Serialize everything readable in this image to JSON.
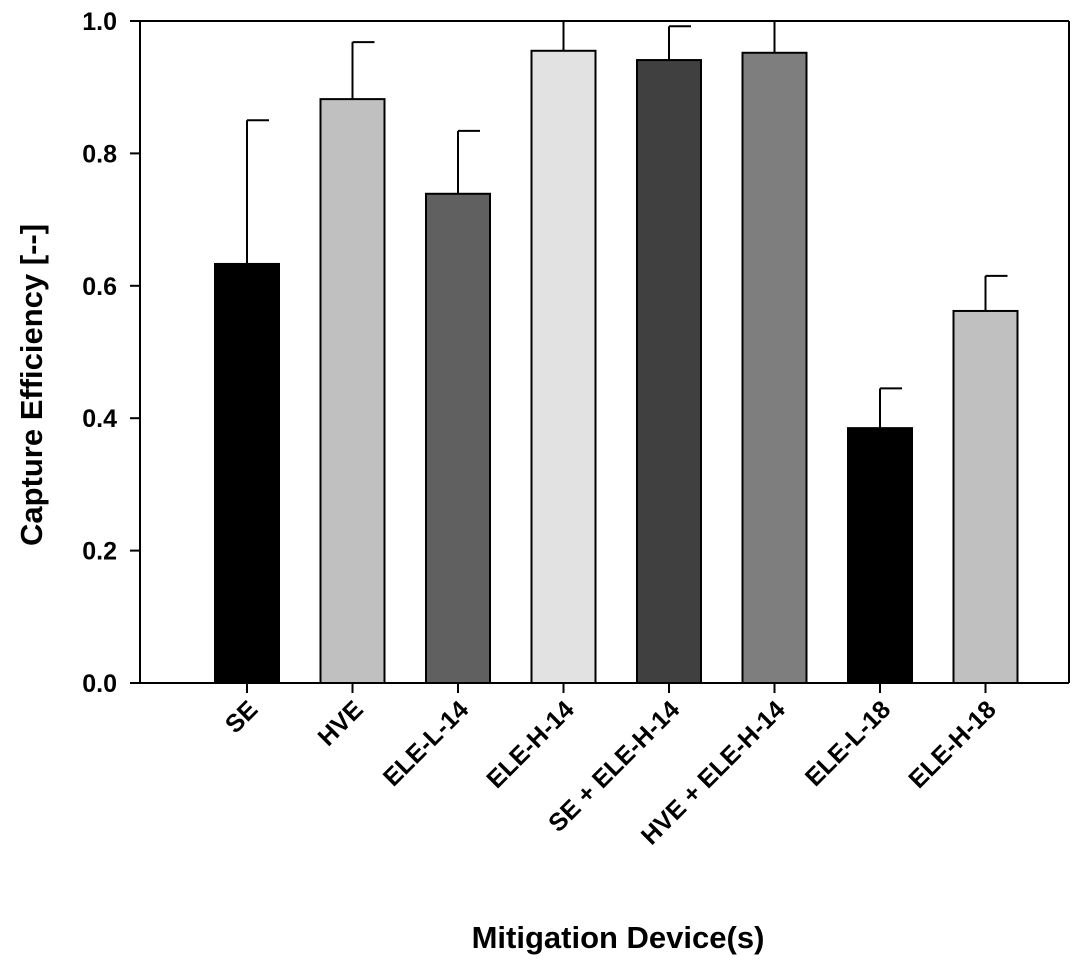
{
  "chart_data": {
    "type": "bar",
    "title": "",
    "xlabel": "Mitigation Device(s)",
    "ylabel": "Capture Efficiency  [--]",
    "ylim": [
      0.0,
      1.0
    ],
    "yticks": [
      "0.0",
      "0.2",
      "0.4",
      "0.6",
      "0.8",
      "1.0"
    ],
    "ytick_values": [
      0.0,
      0.2,
      0.4,
      0.6,
      0.8,
      1.0
    ],
    "categories": [
      "SE",
      "HVE",
      "ELE-L-14",
      "ELE-H-14",
      "SE + ELE-H-14",
      "HVE + ELE-H-14",
      "ELE-L-18",
      "ELE-H-18"
    ],
    "values": [
      0.633,
      0.882,
      0.739,
      0.955,
      0.941,
      0.952,
      0.385,
      0.562
    ],
    "error_upper": [
      0.85,
      0.968,
      0.834,
      1.0,
      0.992,
      1.0,
      0.445,
      0.615
    ],
    "bar_colors": [
      "#000000",
      "#c0c0c0",
      "#606060",
      "#e2e2e2",
      "#404040",
      "#7e7e7e",
      "#000000",
      "#c0c0c0"
    ],
    "grid": false,
    "legend": "none"
  }
}
